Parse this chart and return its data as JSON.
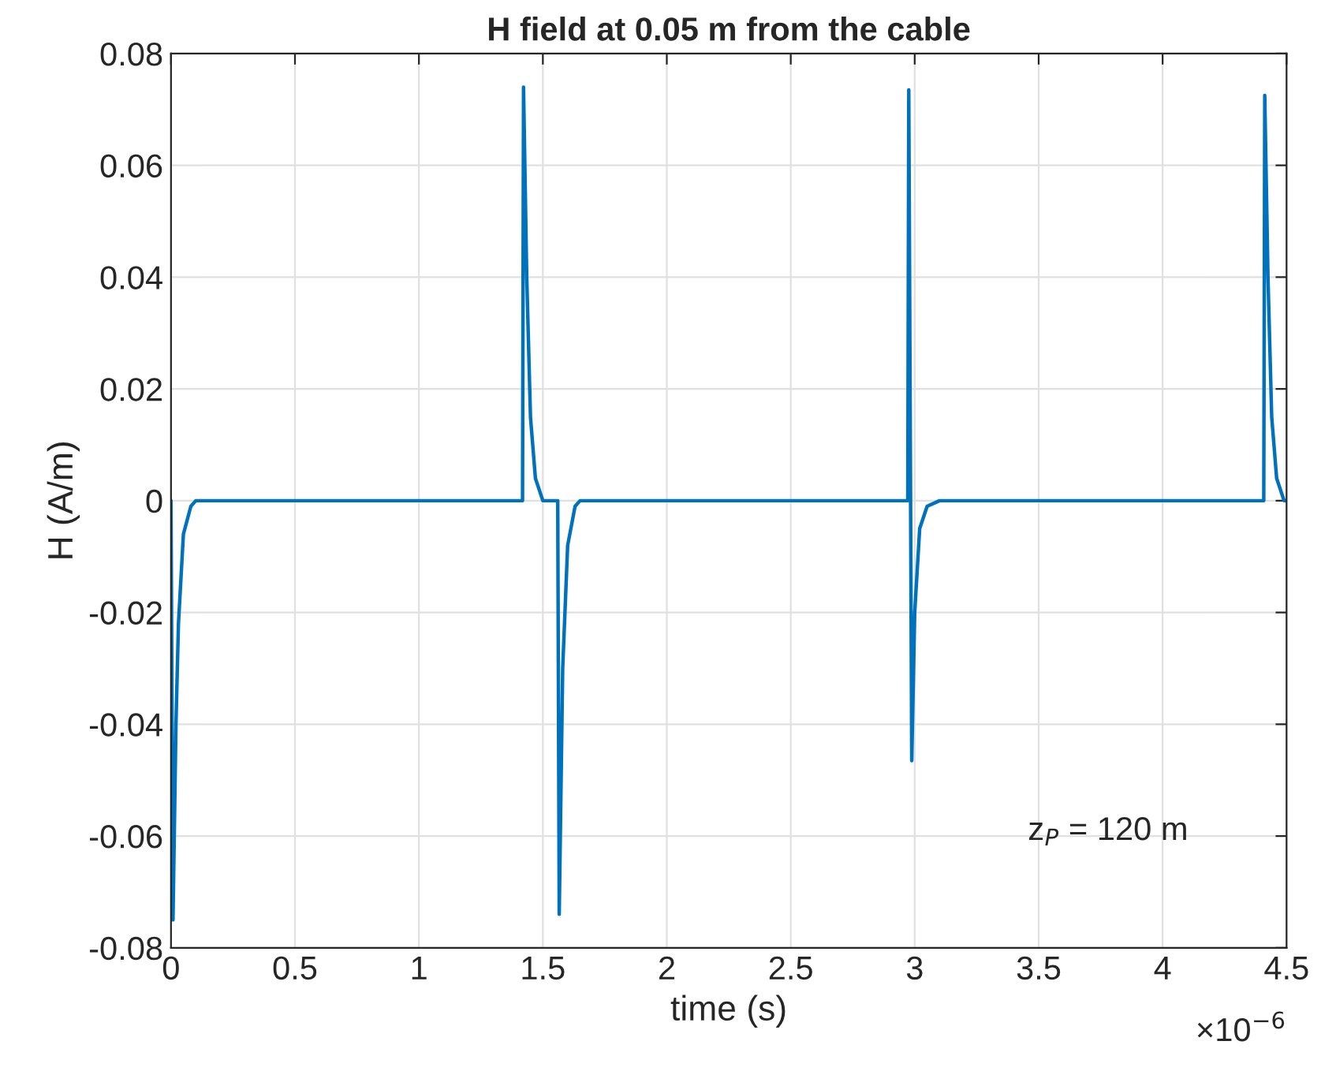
{
  "chart_data": {
    "type": "line",
    "title": "H field at 0.05 m from the cable",
    "xlabel": "time (s)",
    "ylabel": "H (A/m)",
    "x": [
      0,
      0.008,
      0.02,
      0.03,
      0.05,
      0.08,
      0.1,
      1.418,
      1.422,
      1.435,
      1.45,
      1.47,
      1.5,
      1.56,
      1.566,
      1.58,
      1.6,
      1.63,
      1.65,
      2.972,
      2.976,
      2.988,
      3.0,
      3.02,
      3.05,
      3.1,
      4.408,
      4.412,
      4.425,
      4.44,
      4.46,
      4.49,
      4.5
    ],
    "series": [
      {
        "color": "#0072bd",
        "values": [
          0,
          -0.075,
          -0.04,
          -0.022,
          -0.006,
          -0.001,
          0,
          0,
          0.074,
          0.04,
          0.015,
          0.004,
          0,
          0,
          -0.074,
          -0.03,
          -0.008,
          -0.001,
          0,
          0,
          0.0735,
          -0.0465,
          -0.02,
          -0.005,
          -0.001,
          0,
          0,
          0.0725,
          0.04,
          0.015,
          0.004,
          0,
          0
        ]
      }
    ],
    "xlim": [
      0,
      4.5
    ],
    "ylim": [
      -0.08,
      0.08
    ],
    "xticks": [
      0,
      0.5,
      1,
      1.5,
      2,
      2.5,
      3,
      3.5,
      4,
      4.5
    ],
    "yticks": [
      -0.08,
      -0.06,
      -0.04,
      -0.02,
      0,
      0.02,
      0.04,
      0.06,
      0.08
    ],
    "grid": true,
    "annotations": [
      "z$_{P}$ = 120 m",
      "×10$^{−6}$"
    ]
  }
}
